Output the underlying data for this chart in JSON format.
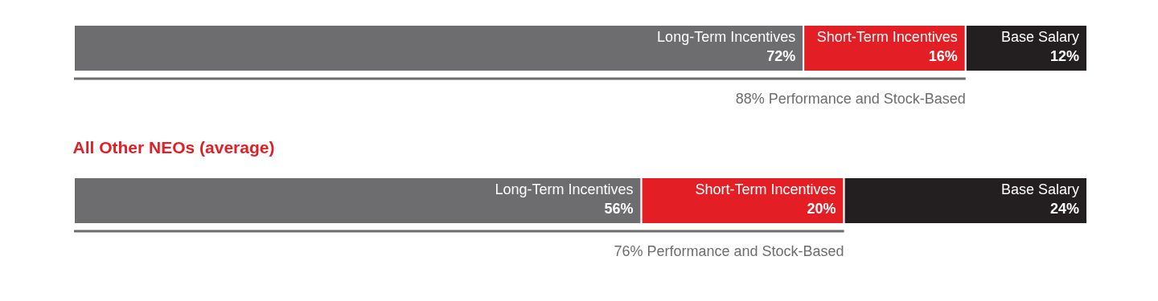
{
  "chart_data": [
    {
      "type": "bar",
      "stacked": true,
      "orientation": "horizontal",
      "categories": [
        null
      ],
      "xlim": [
        0,
        100
      ],
      "tick_labels": false,
      "series": [
        {
          "name": "Long-Term Incentives",
          "color": "#6d6d6f",
          "values": [
            72
          ],
          "value_labels": [
            "72%"
          ]
        },
        {
          "name": "Short-Term Incentives",
          "color": "#e31e24",
          "values": [
            16
          ],
          "value_labels": [
            "16%"
          ]
        },
        {
          "name": "Base Salary",
          "color": "#231f20",
          "values": [
            12
          ],
          "value_labels": [
            "12%"
          ]
        }
      ],
      "annotations": [
        "88% Performance and Stock-Based"
      ]
    },
    {
      "type": "bar",
      "stacked": true,
      "orientation": "horizontal",
      "title": "All Other NEOs (average)",
      "categories": [
        null
      ],
      "xlim": [
        0,
        100
      ],
      "tick_labels": false,
      "series": [
        {
          "name": "Long-Term Incentives",
          "color": "#6d6d6f",
          "values": [
            56
          ],
          "value_labels": [
            "56%"
          ]
        },
        {
          "name": "Short-Term Incentives",
          "color": "#e31e24",
          "values": [
            20
          ],
          "value_labels": [
            "20%"
          ]
        },
        {
          "name": "Base Salary",
          "color": "#231f20",
          "values": [
            24
          ],
          "value_labels": [
            "24%"
          ]
        }
      ],
      "annotations": [
        "76% Performance and Stock-Based"
      ]
    }
  ]
}
